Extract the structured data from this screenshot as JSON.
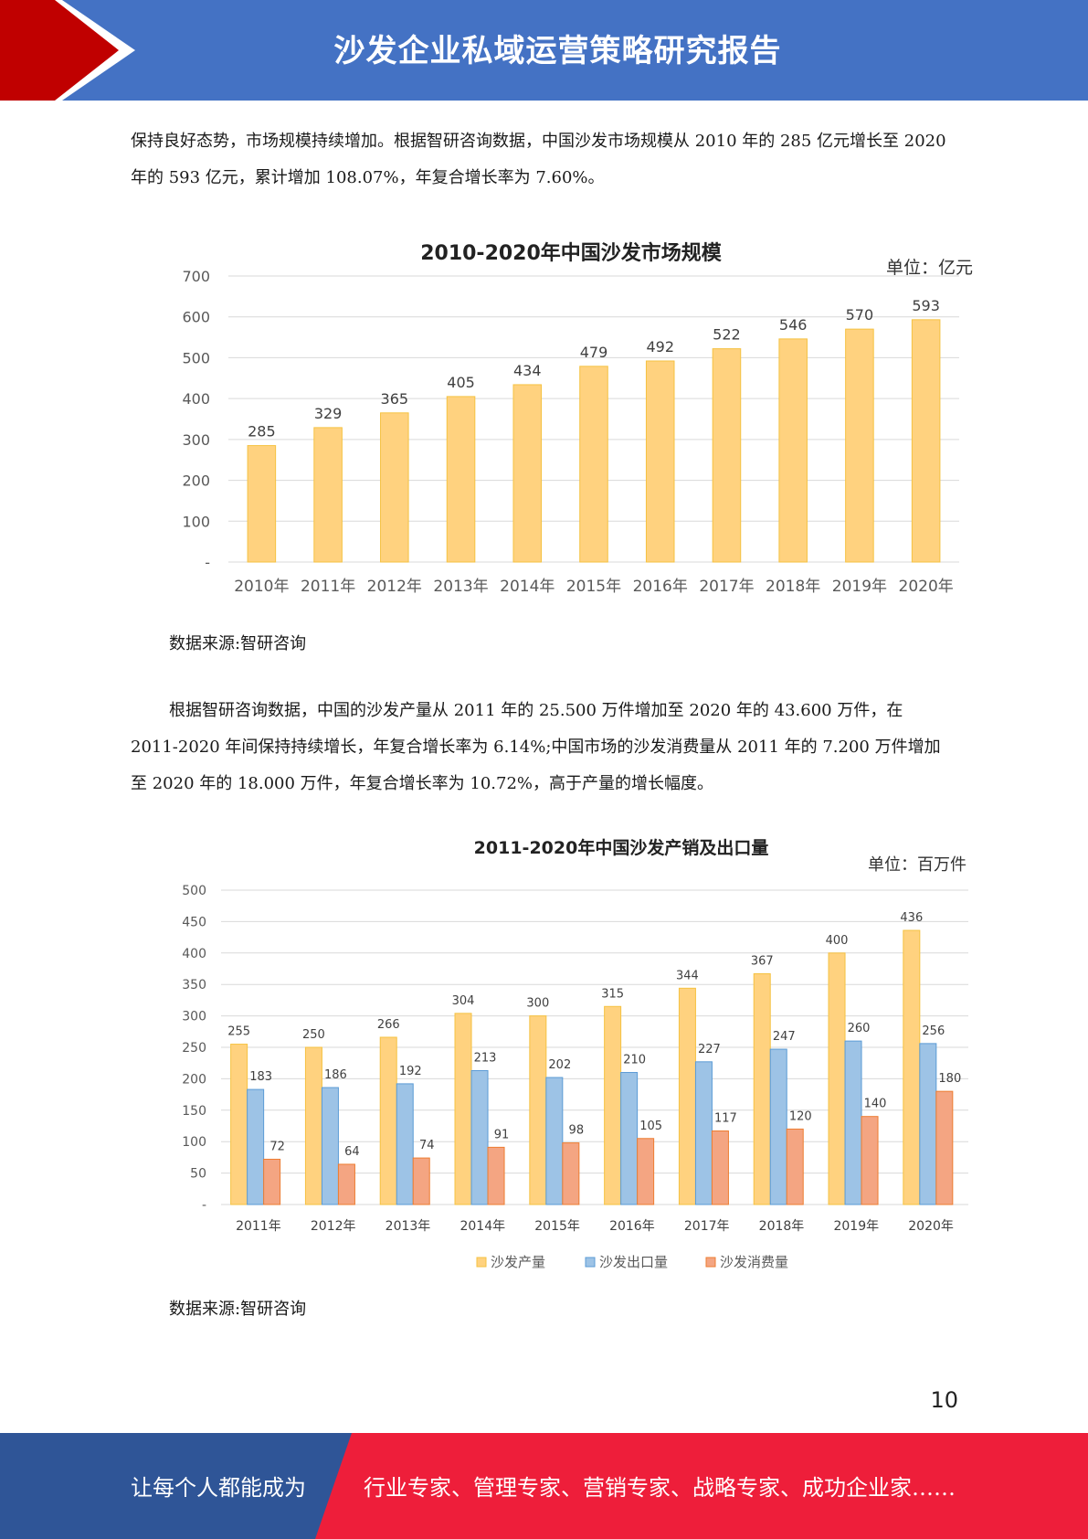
{
  "header": {
    "title": "沙发企业私域运营策略研究报告"
  },
  "paragraph1": "保持良好态势，市场规模持续增加。根据智研咨询数据，中国沙发市场规模从 2010 年的 285 亿元增长至 2020 年的 593 亿元，累计增加 108.07%，年复合增长率为 7.60%。",
  "paragraph2": "根据智研咨询数据，中国的沙发产量从 2011 年的 25.500 万件增加至 2020 年的 43.600 万件，在 2011-2020 年间保持持续增长，年复合增长率为 6.14%;中国市场的沙发消费量从 2011 年的 7.200 万件增加至 2020 年的 18.000 万件，年复合增长率为 10.72%，高于产量的增长幅度。",
  "source1": "数据来源:智研咨询",
  "source2": "数据来源:智研咨询",
  "page_number": "10",
  "footer": {
    "left": "让每个人都能成为",
    "right": "行业专家、管理专家、营销专家、战略专家、成功企业家……"
  },
  "colors": {
    "header_blue": "#4472C4",
    "header_red": "#C00000",
    "footer_blue": "#2F5597",
    "footer_red": "#EE1E3A",
    "bar_yellow": "#FFD27F",
    "bar_blue": "#9DC3E6",
    "bar_orange": "#F4A582"
  },
  "chart_data": [
    {
      "type": "bar",
      "title": "2010-2020年中国沙发市场规模",
      "unit": "单位：亿元",
      "categories": [
        "2010年",
        "2011年",
        "2012年",
        "2013年",
        "2014年",
        "2015年",
        "2016年",
        "2017年",
        "2018年",
        "2019年",
        "2020年"
      ],
      "values": [
        285,
        329,
        365,
        405,
        434,
        479,
        492,
        522,
        546,
        570,
        593
      ],
      "yticks": [
        "-",
        "100",
        "200",
        "300",
        "400",
        "500",
        "600",
        "700"
      ],
      "ylim": [
        0,
        700
      ],
      "grid": true
    },
    {
      "type": "bar",
      "title": "2011-2020年中国沙发产销及出口量",
      "unit": "单位：百万件",
      "categories": [
        "2011年",
        "2012年",
        "2013年",
        "2014年",
        "2015年",
        "2016年",
        "2017年",
        "2018年",
        "2019年",
        "2020年"
      ],
      "series": [
        {
          "name": "沙发产量",
          "values": [
            255,
            250,
            266,
            304,
            300,
            315,
            344,
            367,
            400,
            436
          ]
        },
        {
          "name": "沙发出口量",
          "values": [
            183,
            186,
            192,
            213,
            202,
            210,
            227,
            247,
            260,
            256
          ]
        },
        {
          "name": "沙发消费量",
          "values": [
            72,
            64,
            74,
            91,
            98,
            105,
            117,
            120,
            140,
            180
          ]
        }
      ],
      "yticks": [
        "-",
        "50",
        "100",
        "150",
        "200",
        "250",
        "300",
        "350",
        "400",
        "450",
        "500"
      ],
      "ylim": [
        0,
        500
      ],
      "grid": true,
      "legend": "bottom"
    }
  ]
}
